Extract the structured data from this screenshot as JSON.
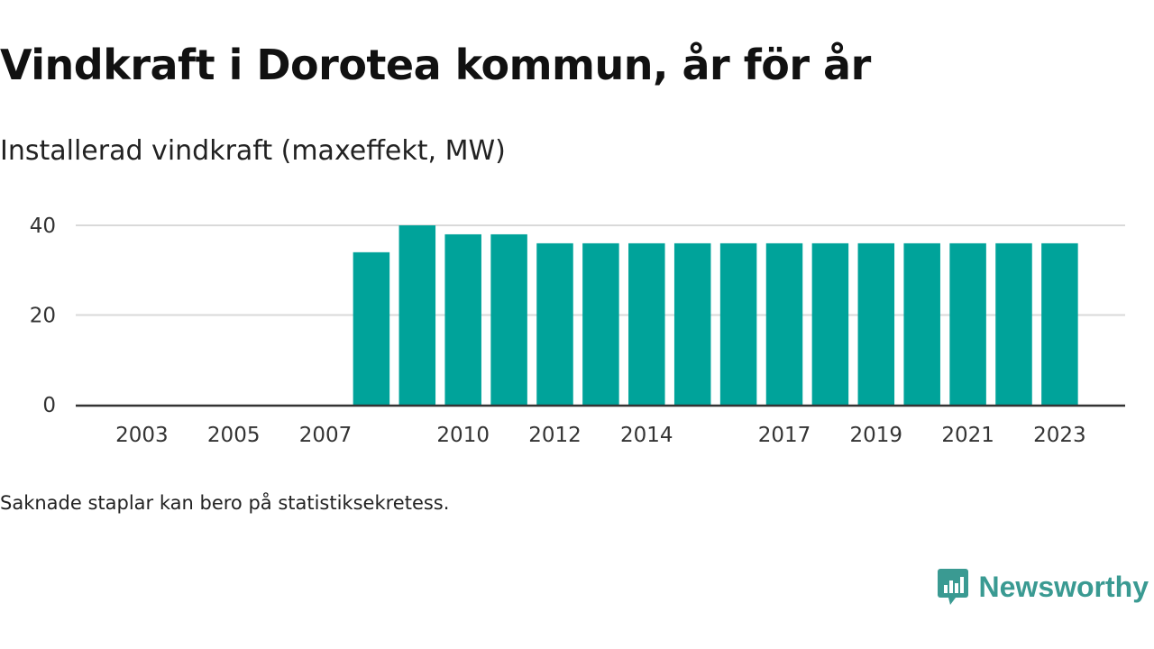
{
  "title": "Vindkraft i Dorotea kommun, år för år",
  "subtitle": "Installerad vindkraft (maxeffekt, MW)",
  "footnote": "Saknade staplar kan bero på statistiksekretess.",
  "brand": {
    "name": "Newsworthy",
    "icon": "newsworthy-logo-icon",
    "color": "#3a9a92"
  },
  "colors": {
    "bar": "#00a39a",
    "grid": "#d9d9d9",
    "axis": "#333333"
  },
  "chart_data": {
    "type": "bar",
    "categories": [
      "2002",
      "2003",
      "2004",
      "2005",
      "2006",
      "2007",
      "2008",
      "2009",
      "2010",
      "2011",
      "2012",
      "2013",
      "2014",
      "2015",
      "2016",
      "2017",
      "2018",
      "2019",
      "2020",
      "2021",
      "2022",
      "2023"
    ],
    "values": [
      null,
      null,
      null,
      null,
      null,
      null,
      34,
      40,
      38,
      38,
      36,
      36,
      36,
      36,
      36,
      36,
      36,
      36,
      36,
      36,
      36,
      36
    ],
    "x_tick_labels": [
      "2003",
      "2005",
      "2007",
      "2010",
      "2012",
      "2014",
      "2017",
      "2019",
      "2021",
      "2023"
    ],
    "yticks": [
      0,
      20,
      40
    ],
    "ylim": [
      0,
      40
    ],
    "xlabel": "",
    "ylabel": "",
    "grid": true
  }
}
